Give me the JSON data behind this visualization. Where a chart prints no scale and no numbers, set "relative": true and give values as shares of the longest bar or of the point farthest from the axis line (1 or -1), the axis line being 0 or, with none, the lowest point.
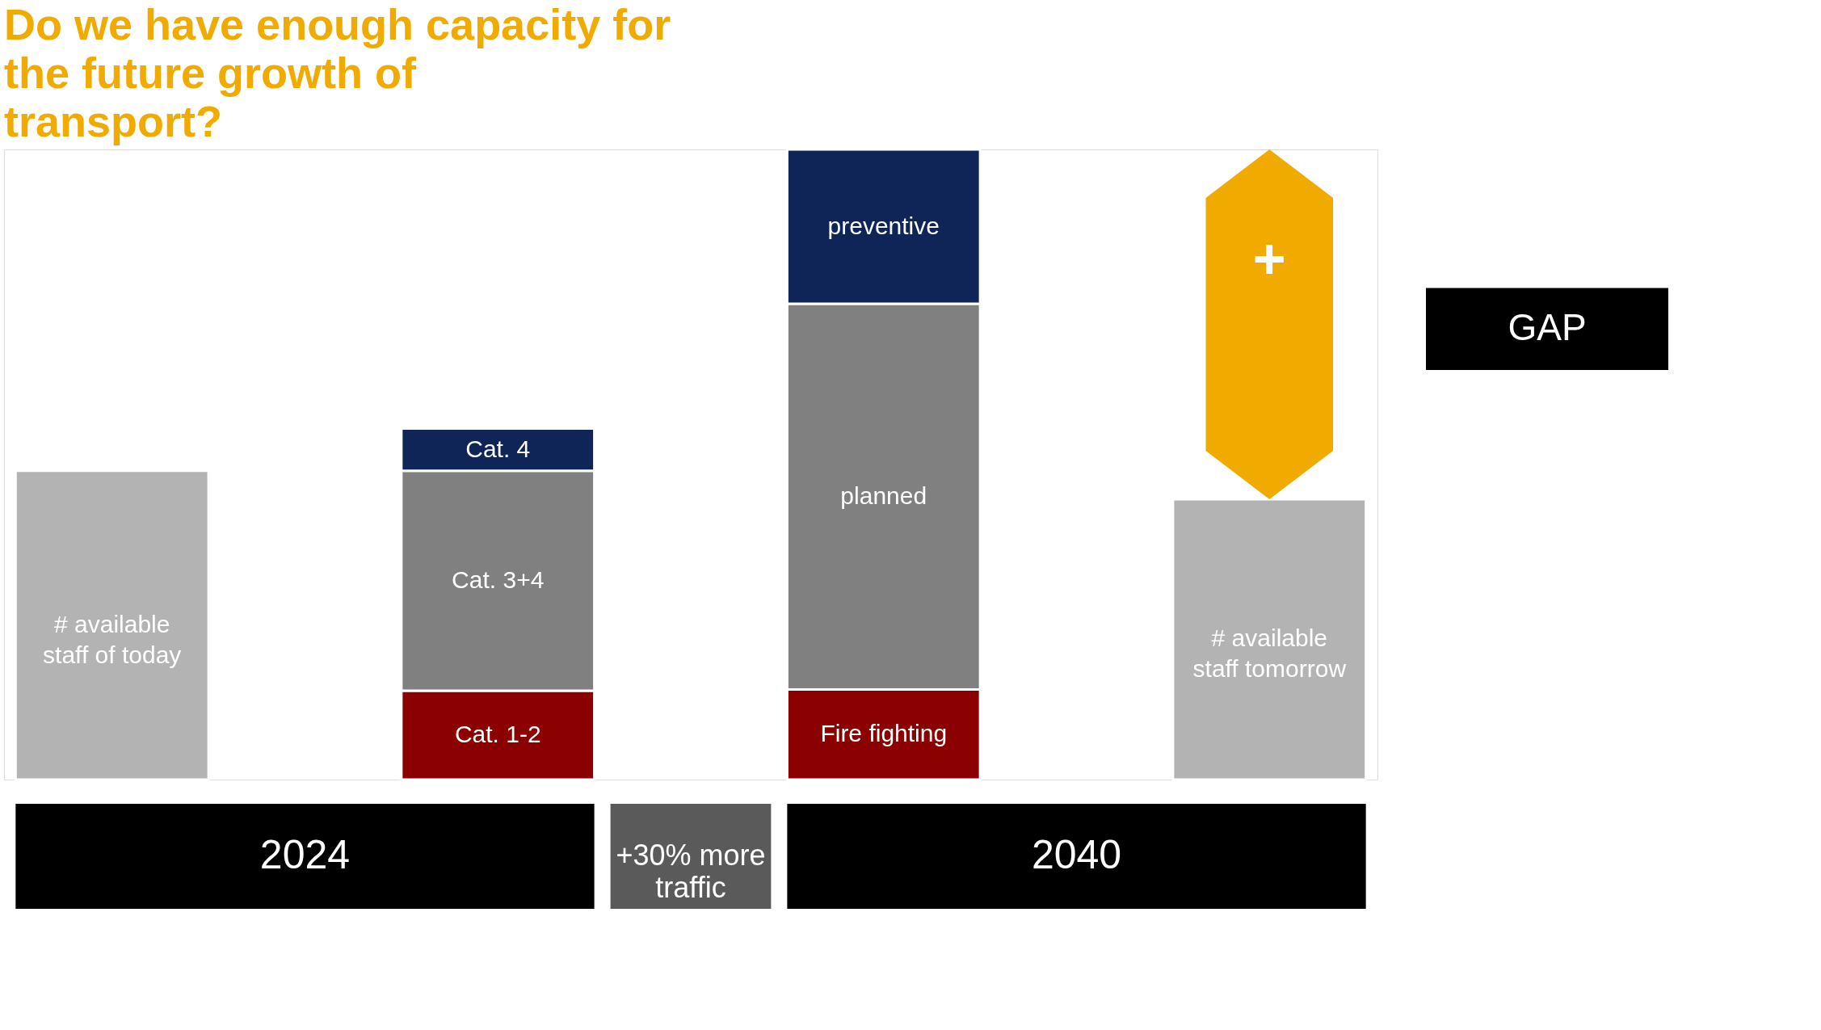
{
  "chart_data": {
    "type": "bar",
    "stacked": true,
    "relative": true,
    "title": "Do we have enough capacity for the future growth of transport?",
    "categories": [
      null,
      null,
      null,
      null
    ],
    "series": [
      {
        "name": "# available staff of today",
        "color": "#b3b3b3",
        "values": [
          0.49,
          null,
          null,
          null
        ]
      },
      {
        "name": "Cat. 1-2",
        "color": "#8b0000",
        "values": [
          null,
          0.141,
          null,
          null
        ]
      },
      {
        "name": "Cat. 3+4",
        "color": "#808080",
        "values": [
          null,
          0.349,
          null,
          null
        ]
      },
      {
        "name": "Cat. 4",
        "color": "#0f2557",
        "values": [
          null,
          0.067,
          null,
          null
        ]
      },
      {
        "name": "Fire fighting",
        "color": "#8b0000",
        "values": [
          null,
          null,
          0.143,
          null
        ]
      },
      {
        "name": "planned",
        "color": "#808080",
        "values": [
          null,
          null,
          0.612,
          null
        ]
      },
      {
        "name": "preventive",
        "color": "#0f2557",
        "values": [
          null,
          null,
          0.245,
          null
        ]
      },
      {
        "name": "# available staff tomorrow",
        "color": "#b3b3b3",
        "values": [
          null,
          null,
          null,
          0.445
        ]
      }
    ],
    "annotations": [
      "2024",
      "+30% more traffic",
      "2040",
      "GAP",
      "+"
    ]
  }
}
